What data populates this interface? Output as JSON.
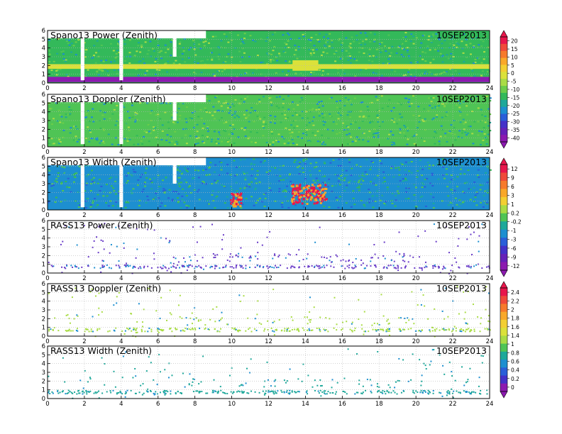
{
  "chart_data": [
    {
      "type": "heatmap",
      "title": "Spano13 Power (Zenith)",
      "date": "10SEP2013",
      "x_ticks": [
        "0",
        "2",
        "4",
        "6",
        "8",
        "10",
        "12",
        "14",
        "16",
        "18",
        "20",
        "22",
        "24"
      ],
      "y_ticks": [
        "0",
        "1",
        "2",
        "3",
        "4",
        "5",
        "6"
      ],
      "xlim": [
        0,
        24
      ],
      "ylim": [
        0,
        6
      ],
      "colorbar_group": "power"
    },
    {
      "type": "heatmap",
      "title": "Spano13 Doppler (Zenith)",
      "date": "10SEP2013",
      "x_ticks": [
        "0",
        "2",
        "4",
        "6",
        "8",
        "10",
        "12",
        "14",
        "16",
        "18",
        "20",
        "22",
        "24"
      ],
      "y_ticks": [
        "0",
        "1",
        "2",
        "3",
        "4",
        "5",
        "6"
      ],
      "xlim": [
        0,
        24
      ],
      "ylim": [
        0,
        6
      ],
      "colorbar_group": "power"
    },
    {
      "type": "heatmap",
      "title": "Spano13 Width (Zenith)",
      "date": "10SEP2013",
      "x_ticks": [
        "0",
        "2",
        "4",
        "6",
        "8",
        "10",
        "12",
        "14",
        "16",
        "18",
        "20",
        "22",
        "24"
      ],
      "y_ticks": [
        "0",
        "1",
        "2",
        "3",
        "4",
        "5",
        "6"
      ],
      "xlim": [
        0,
        24
      ],
      "ylim": [
        0,
        6
      ],
      "colorbar_group": "width"
    },
    {
      "type": "heatmap",
      "title": "RASS13 Power (Zenith)",
      "date": "10SEP2013",
      "x_ticks": [
        "0",
        "2",
        "4",
        "6",
        "8",
        "10",
        "12",
        "14",
        "16",
        "18",
        "20",
        "22",
        "24"
      ],
      "y_ticks": [
        "0",
        "1",
        "2",
        "3",
        "4",
        "5",
        "6"
      ],
      "xlim": [
        0,
        24
      ],
      "ylim": [
        0,
        6
      ],
      "colorbar_group": "width"
    },
    {
      "type": "heatmap",
      "title": "RASS13 Doppler (Zenith)",
      "date": "10SEP2013",
      "x_ticks": [
        "0",
        "2",
        "4",
        "6",
        "8",
        "10",
        "12",
        "14",
        "16",
        "18",
        "20",
        "22",
        "24"
      ],
      "y_ticks": [
        "0",
        "1",
        "2",
        "3",
        "4",
        "5",
        "6"
      ],
      "xlim": [
        0,
        24
      ],
      "ylim": [
        0,
        6
      ],
      "colorbar_group": "rass"
    },
    {
      "type": "heatmap",
      "title": "RASS13 Width (Zenith)",
      "date": "10SEP2013",
      "x_ticks": [
        "0",
        "2",
        "4",
        "6",
        "8",
        "10",
        "12",
        "14",
        "16",
        "18",
        "20",
        "22",
        "24"
      ],
      "y_ticks": [
        "0",
        "1",
        "2",
        "3",
        "4",
        "5",
        "6"
      ],
      "xlim": [
        0,
        24
      ],
      "ylim": [
        0,
        6
      ],
      "colorbar_group": "rass"
    }
  ],
  "colorbars": [
    {
      "name": "power",
      "labels": [
        "20",
        "15",
        "10",
        "5",
        "0",
        "-5",
        "-10",
        "-15",
        "-20",
        "-25",
        "-30",
        "-35",
        "-40"
      ],
      "colors": [
        "#e8174c",
        "#f04a3a",
        "#f77a2c",
        "#f9a82a",
        "#f3cf32",
        "#dbe13a",
        "#a9dc45",
        "#6ccd4a",
        "#33b95a",
        "#1ea89a",
        "#1d8fd0",
        "#2a5fd9",
        "#4431c8",
        "#6621b8",
        "#8c1ab0"
      ]
    },
    {
      "name": "width",
      "labels": [
        "12",
        "9",
        "6",
        "3",
        "1",
        "0.2",
        "-0.2",
        "-1",
        "-3",
        "-6",
        "-9",
        "-12"
      ],
      "colors": [
        "#e8174c",
        "#f04a3a",
        "#f77a2c",
        "#f9a82a",
        "#f3cf32",
        "#a9dc45",
        "#4fc455",
        "#1ea89a",
        "#1d8fd0",
        "#2a5fd9",
        "#4431c8",
        "#6621b8",
        "#8c1ab0"
      ]
    },
    {
      "name": "rass",
      "labels": [
        "2.4",
        "2.2",
        "2",
        "1.8",
        "1.6",
        "1.4",
        "1",
        "0.8",
        "0.6",
        "0.4",
        "0.2",
        "0"
      ],
      "colors": [
        "#e8174c",
        "#f04a3a",
        "#f77a2c",
        "#f9a82a",
        "#f3cf32",
        "#dbe13a",
        "#a9dc45",
        "#4fc455",
        "#1ea89a",
        "#1d8fd0",
        "#2a5fd9",
        "#4431c8",
        "#8c1ab0"
      ]
    }
  ],
  "palette": {
    "spano_power_bg": "#33b95a",
    "spano_power_band": "#dbe13a",
    "spano_power_bottom": "#8c1ab0",
    "spano_doppler_bg": "#4fc455",
    "spano_width_bg": "#1d8fd0",
    "spano_width_hot": "#e8174c",
    "rass_power": "#6a3dc8",
    "rass_doppler": "#a9dc45",
    "rass_width": "#1ea89a"
  }
}
